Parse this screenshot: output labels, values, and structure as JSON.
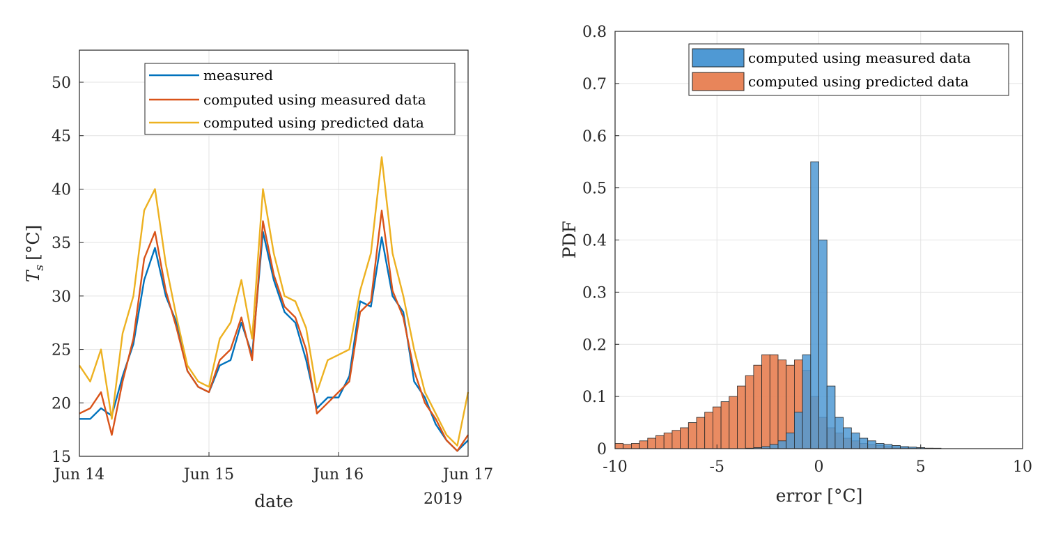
{
  "chart_data": [
    {
      "type": "line",
      "xlabel": "date",
      "x_unit_note": "2019",
      "ylabel_main": "T",
      "ylabel_sub": "s",
      "ylabel_unit": "[°C]",
      "xlim": [
        "2019-06-14 00:00",
        "2019-06-17 00:00"
      ],
      "ylim": [
        15,
        53
      ],
      "x_ticks": [
        "2019-06-14",
        "2019-06-15",
        "2019-06-16",
        "2019-06-17"
      ],
      "x_tick_labels": [
        "Jun 14",
        "Jun 15",
        "Jun 16",
        "Jun 17"
      ],
      "y_ticks": [
        15,
        20,
        25,
        30,
        35,
        40,
        45,
        50
      ],
      "grid": true,
      "legend_position": "top-right",
      "colors": [
        "#0072BD",
        "#D95319",
        "#EDB120"
      ],
      "x": [
        "2019-06-14 00:00",
        "2019-06-14 02:00",
        "2019-06-14 04:00",
        "2019-06-14 06:00",
        "2019-06-14 08:00",
        "2019-06-14 10:00",
        "2019-06-14 12:00",
        "2019-06-14 14:00",
        "2019-06-14 16:00",
        "2019-06-14 18:00",
        "2019-06-14 20:00",
        "2019-06-14 22:00",
        "2019-06-15 00:00",
        "2019-06-15 02:00",
        "2019-06-15 04:00",
        "2019-06-15 06:00",
        "2019-06-15 08:00",
        "2019-06-15 10:00",
        "2019-06-15 12:00",
        "2019-06-15 14:00",
        "2019-06-15 16:00",
        "2019-06-15 18:00",
        "2019-06-15 20:00",
        "2019-06-15 22:00",
        "2019-06-16 00:00",
        "2019-06-16 02:00",
        "2019-06-16 04:00",
        "2019-06-16 06:00",
        "2019-06-16 08:00",
        "2019-06-16 10:00",
        "2019-06-16 12:00",
        "2019-06-16 14:00",
        "2019-06-16 16:00",
        "2019-06-16 18:00",
        "2019-06-16 20:00",
        "2019-06-16 22:00",
        "2019-06-17 00:00"
      ],
      "series": [
        {
          "name": "measured",
          "values": [
            18.5,
            18.5,
            19.5,
            18.8,
            22.5,
            25.5,
            31.5,
            34.5,
            30.0,
            27.5,
            23.0,
            21.5,
            21.0,
            23.5,
            24.0,
            27.5,
            24.5,
            36.0,
            31.5,
            28.5,
            27.5,
            24.0,
            19.5,
            20.5,
            20.5,
            22.5,
            29.5,
            29.0,
            35.5,
            30.0,
            28.5,
            22.0,
            20.5,
            18.0,
            16.5,
            15.5,
            16.5
          ]
        },
        {
          "name": "computed using measured data",
          "values": [
            19.0,
            19.5,
            21.0,
            17.0,
            22.0,
            26.0,
            33.5,
            36.0,
            30.5,
            27.0,
            23.0,
            21.5,
            21.0,
            24.0,
            25.0,
            28.0,
            24.0,
            37.0,
            32.0,
            29.0,
            28.0,
            25.0,
            19.0,
            20.0,
            21.0,
            22.0,
            28.5,
            29.5,
            38.0,
            30.5,
            28.0,
            23.0,
            20.0,
            18.5,
            16.5,
            15.5,
            17.0
          ]
        },
        {
          "name": "computed using predicted data",
          "values": [
            23.5,
            22.0,
            25.0,
            18.5,
            26.5,
            30.0,
            38.0,
            40.0,
            33.0,
            28.0,
            23.5,
            22.0,
            21.5,
            26.0,
            27.5,
            31.5,
            26.0,
            40.0,
            34.0,
            30.0,
            29.5,
            27.0,
            21.0,
            24.0,
            24.5,
            25.0,
            30.5,
            34.0,
            43.0,
            34.0,
            30.0,
            25.0,
            21.0,
            19.0,
            17.0,
            16.0,
            21.0
          ]
        }
      ]
    },
    {
      "type": "bar",
      "subtype": "histogram",
      "xlabel": "error",
      "xlabel_unit": "[°C]",
      "ylabel": "PDF",
      "xlim": [
        -10,
        10
      ],
      "ylim": [
        0,
        0.8
      ],
      "x_ticks": [
        -10,
        -5,
        0,
        5,
        10
      ],
      "y_ticks": [
        0,
        0.1,
        0.2,
        0.3,
        0.4,
        0.5,
        0.6,
        0.7,
        0.8
      ],
      "grid": true,
      "legend_position": "top-right",
      "colors": [
        "#4F99D4",
        "#E8855A"
      ],
      "x": [
        -9.8,
        -9.4,
        -9.0,
        -8.6,
        -8.2,
        -7.8,
        -7.4,
        -7.0,
        -6.6,
        -6.2,
        -5.8,
        -5.4,
        -5.0,
        -4.6,
        -4.2,
        -3.8,
        -3.4,
        -3.0,
        -2.6,
        -2.2,
        -1.8,
        -1.4,
        -1.0,
        -0.6,
        -0.2,
        0.2,
        0.6,
        1.0,
        1.4,
        1.8,
        2.2,
        2.6,
        3.0,
        3.4,
        3.8,
        4.2,
        4.6,
        5.0,
        5.4,
        5.8,
        6.2,
        6.6,
        7.0,
        7.4,
        7.8,
        8.2,
        8.6,
        9.0,
        9.4,
        9.8
      ],
      "series": [
        {
          "name": "computed using measured data",
          "values": [
            0,
            0,
            0,
            0,
            0,
            0,
            0,
            0,
            0,
            0,
            0,
            0,
            0,
            0,
            0,
            0,
            0.001,
            0.002,
            0.004,
            0.008,
            0.015,
            0.03,
            0.07,
            0.18,
            0.55,
            0.4,
            0.12,
            0.06,
            0.04,
            0.03,
            0.02,
            0.015,
            0.01,
            0.008,
            0.006,
            0.004,
            0.003,
            0.002,
            0.001,
            0.001,
            0,
            0,
            0,
            0,
            0,
            0,
            0,
            0,
            0,
            0
          ]
        },
        {
          "name": "computed using predicted data",
          "values": [
            0.01,
            0.008,
            0.01,
            0.015,
            0.02,
            0.025,
            0.03,
            0.035,
            0.04,
            0.05,
            0.06,
            0.07,
            0.08,
            0.09,
            0.1,
            0.12,
            0.14,
            0.16,
            0.18,
            0.18,
            0.17,
            0.16,
            0.17,
            0.15,
            0.1,
            0.06,
            0.04,
            0.03,
            0.02,
            0.015,
            0.01,
            0.008,
            0.006,
            0.004,
            0.003,
            0.002,
            0.001,
            0.001,
            0.001,
            0,
            0,
            0,
            0,
            0,
            0,
            0,
            0,
            0,
            0,
            0
          ]
        }
      ]
    }
  ]
}
